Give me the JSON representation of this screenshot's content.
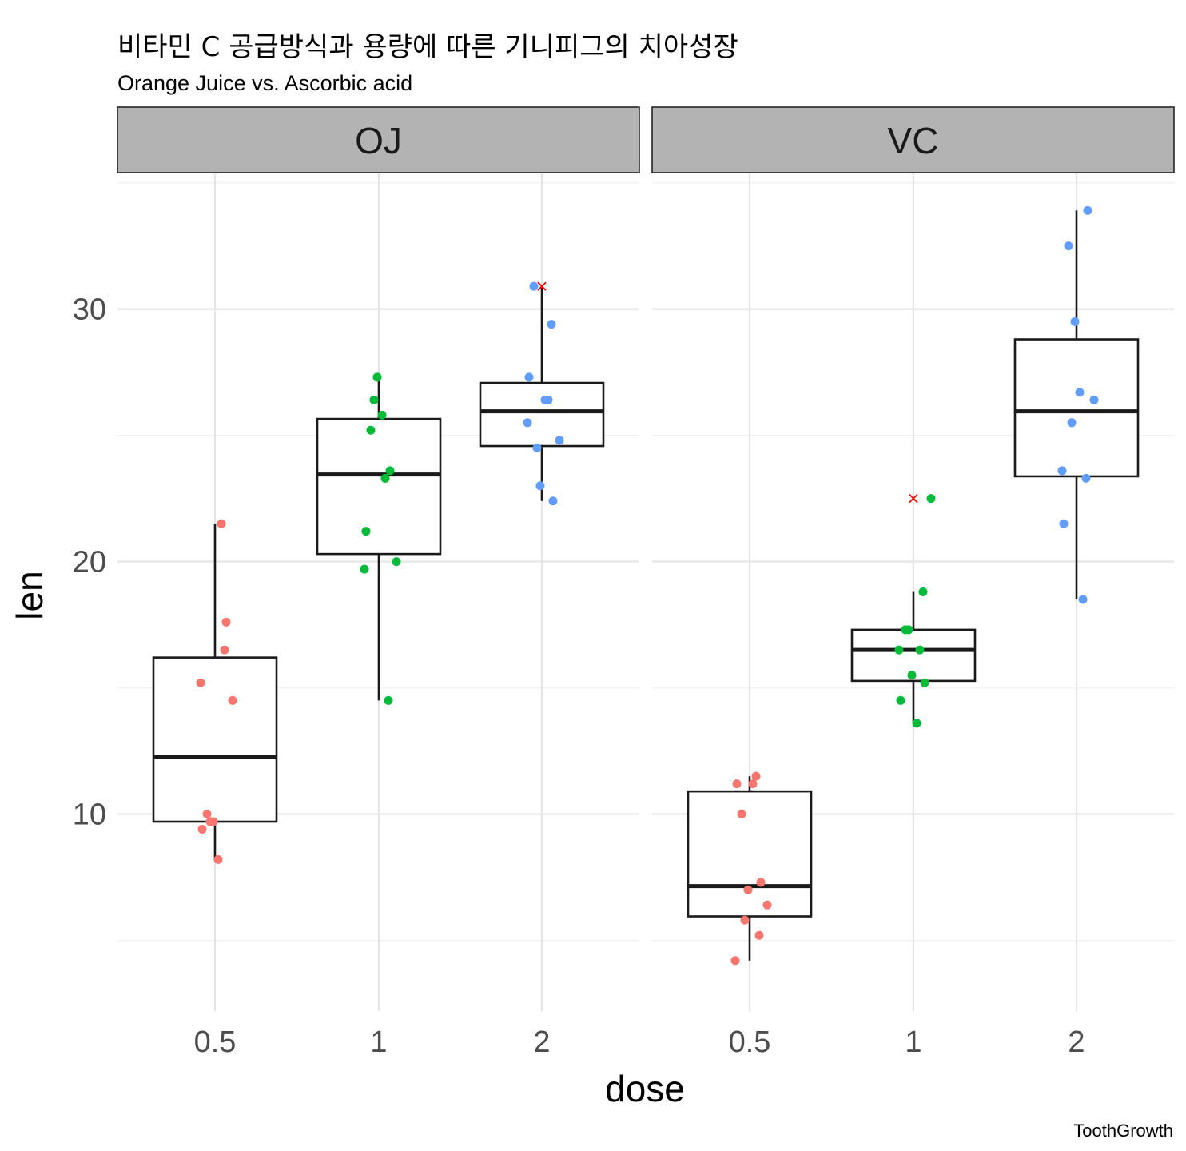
{
  "chart_data": {
    "type": "boxplot",
    "title": "비타민 C 공급방식과 용량에 따른 기니피그의 치아성장",
    "subtitle": "Orange Juice vs. Ascorbic acid",
    "caption": "ToothGrowth",
    "xlabel": "dose",
    "ylabel": "len",
    "x_categories": [
      "0.5",
      "1",
      "2"
    ],
    "y_ticks": [
      10,
      20,
      30
    ],
    "ylim": [
      2.2,
      35.4
    ],
    "grid": true,
    "facets": [
      {
        "label": "OJ",
        "groups": [
          {
            "dose": "0.5",
            "color": "#F8766D",
            "box": {
              "lower_whisker": 8.2,
              "q1": 9.7,
              "median": 12.25,
              "q3": 16.2,
              "upper_whisker": 21.5
            },
            "points": [
              15.2,
              21.5,
              17.6,
              9.7,
              14.5,
              10.0,
              8.2,
              9.4,
              16.5,
              9.7
            ]
          },
          {
            "dose": "1",
            "color": "#00BA38",
            "box": {
              "lower_whisker": 14.5,
              "q1": 20.3,
              "median": 23.45,
              "q3": 25.65,
              "upper_whisker": 27.3
            },
            "points": [
              19.7,
              23.3,
              23.6,
              26.4,
              20.0,
              25.2,
              25.8,
              21.2,
              14.5,
              27.3
            ]
          },
          {
            "dose": "2",
            "color": "#619CFF",
            "box": {
              "lower_whisker": 22.4,
              "q1": 24.575,
              "median": 25.95,
              "q3": 27.075,
              "upper_whisker": 30.9
            },
            "points": [
              25.5,
              26.4,
              22.4,
              24.5,
              24.8,
              30.9,
              26.4,
              27.3,
              29.4,
              23.0
            ],
            "mark": 30.9
          }
        ]
      },
      {
        "label": "VC",
        "groups": [
          {
            "dose": "0.5",
            "color": "#F8766D",
            "box": {
              "lower_whisker": 4.2,
              "q1": 5.95,
              "median": 7.15,
              "q3": 10.9,
              "upper_whisker": 11.5
            },
            "points": [
              4.2,
              11.5,
              7.3,
              5.8,
              6.4,
              10.0,
              11.2,
              11.2,
              5.2,
              7.0
            ]
          },
          {
            "dose": "1",
            "color": "#00BA38",
            "box": {
              "lower_whisker": 13.6,
              "q1": 15.275,
              "median": 16.5,
              "q3": 17.3,
              "upper_whisker": 18.8
            },
            "points": [
              16.5,
              16.5,
              15.2,
              17.3,
              22.5,
              17.3,
              13.6,
              14.5,
              18.8,
              15.5
            ],
            "mark": 22.5
          },
          {
            "dose": "2",
            "color": "#619CFF",
            "box": {
              "lower_whisker": 18.5,
              "q1": 23.375,
              "median": 25.95,
              "q3": 28.8,
              "upper_whisker": 33.9
            },
            "points": [
              23.6,
              18.5,
              33.9,
              25.5,
              26.4,
              32.5,
              26.7,
              21.5,
              23.3,
              29.5
            ]
          }
        ]
      }
    ]
  }
}
